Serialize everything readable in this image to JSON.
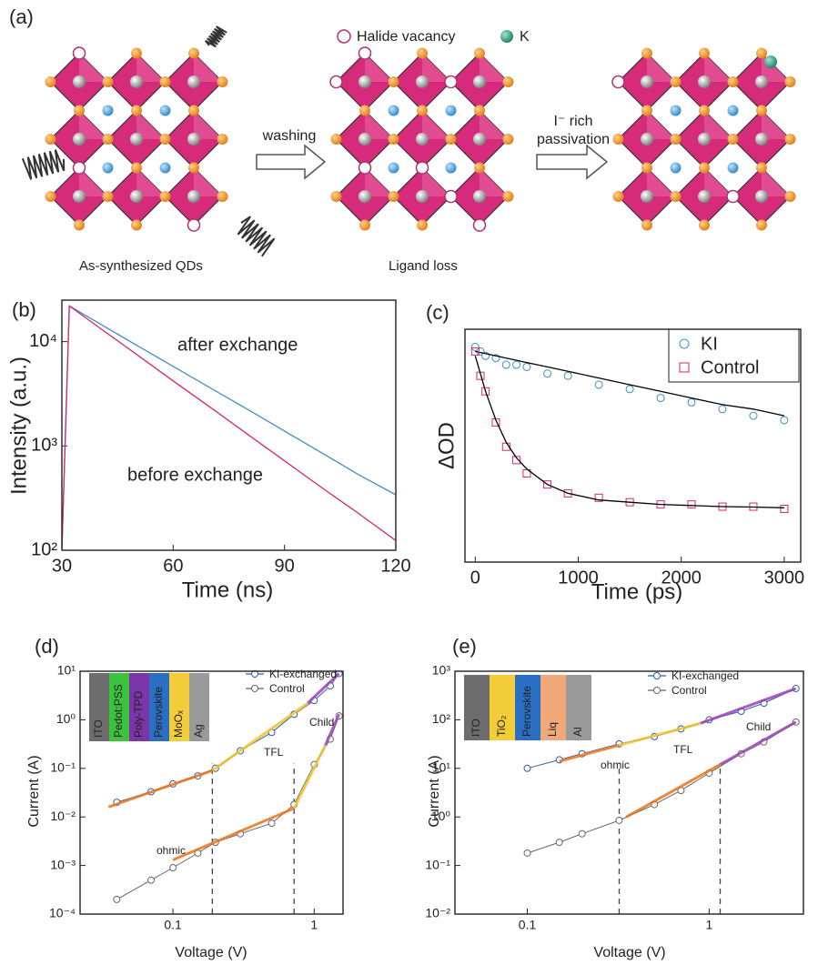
{
  "diagram": {
    "label": "(a)",
    "legend": [
      "Halide vacancy",
      "K"
    ],
    "steps": [
      "washing",
      "I⁻ rich",
      "passivation"
    ],
    "captions": [
      "As-synthesized QDs",
      "Ligand loss"
    ]
  },
  "chart_data": [
    {
      "type": "line",
      "panel": "(b)",
      "x_label": "Time (ns)",
      "y_label": "Intensity (a.u.)",
      "yscale": "log",
      "x": [
        30,
        32,
        40,
        50,
        60,
        70,
        80,
        90,
        100,
        110,
        120
      ],
      "series": [
        {
          "name": "after exchange",
          "color": "#3c8fc7",
          "values": [
            100,
            22000,
            15000,
            9300,
            5800,
            3600,
            2250,
            1390,
            860,
            530,
            340
          ]
        },
        {
          "name": "before exchange",
          "color": "#d6286b",
          "values": [
            100,
            22000,
            13700,
            7600,
            4200,
            2350,
            1300,
            720,
            400,
            225,
            124
          ]
        }
      ],
      "xlim": [
        30,
        120
      ],
      "xticks": [
        30,
        60,
        90,
        120
      ],
      "ylim": [
        100,
        25000
      ],
      "yticks": [
        {
          "value": 100,
          "label": "10²"
        },
        {
          "value": 1000,
          "label": "10³"
        },
        {
          "value": 10000,
          "label": "10⁴"
        }
      ]
    },
    {
      "type": "scatter",
      "panel": "(c)",
      "x_label": "Time (ps)",
      "y_label": "ΔOD",
      "fit_color": "#000000",
      "legend": "upper right",
      "x": [
        0,
        50,
        100,
        200,
        300,
        400,
        500,
        700,
        900,
        1200,
        1500,
        1800,
        2100,
        2400,
        2700,
        3000
      ],
      "series": [
        {
          "name": "KI",
          "color": "#3c8fc7",
          "marker": "circle",
          "values": [
            0.97,
            0.95,
            0.93,
            0.92,
            0.89,
            0.89,
            0.88,
            0.85,
            0.84,
            0.8,
            0.78,
            0.74,
            0.72,
            0.69,
            0.66,
            0.64
          ],
          "fit": [
            0.95,
            0.945,
            0.94,
            0.93,
            0.92,
            0.91,
            0.9,
            0.88,
            0.86,
            0.83,
            0.8,
            0.77,
            0.74,
            0.71,
            0.69,
            0.66
          ]
        },
        {
          "name": "Control",
          "color": "#d6286b",
          "marker": "square",
          "values": [
            0.95,
            0.84,
            0.77,
            0.63,
            0.52,
            0.46,
            0.4,
            0.35,
            0.31,
            0.29,
            0.27,
            0.26,
            0.26,
            0.25,
            0.25,
            0.24
          ],
          "fit": [
            0.93,
            0.85,
            0.77,
            0.64,
            0.54,
            0.47,
            0.42,
            0.35,
            0.31,
            0.28,
            0.27,
            0.26,
            0.255,
            0.25,
            0.248,
            0.245
          ]
        }
      ],
      "xlim": [
        -100,
        3160
      ],
      "xticks": [
        0,
        1000,
        2000,
        3000
      ],
      "ylim": [
        0,
        1.05
      ]
    },
    {
      "type": "line",
      "panel": "(d)",
      "x_label": "Voltage (V)",
      "y_label": "Current (A)",
      "xscale": "log",
      "yscale": "log",
      "x": [
        0.04,
        0.07,
        0.1,
        0.15,
        0.2,
        0.3,
        0.5,
        0.72,
        1,
        1.3,
        1.5
      ],
      "series": [
        {
          "name": "KI-exchanged",
          "color": "#2f5fa8",
          "marker": "circle",
          "values": [
            0.02,
            0.033,
            0.048,
            0.07,
            0.1,
            0.23,
            0.55,
            1.3,
            2.5,
            5,
            9
          ]
        },
        {
          "name": "Control",
          "color": "#666666",
          "marker": "circle",
          "values": [
            0.0002,
            0.0005,
            0.0009,
            0.0018,
            0.003,
            0.0045,
            0.0074,
            0.018,
            0.12,
            0.4,
            1.2
          ]
        }
      ],
      "fits": [
        {
          "color": "#e8731f",
          "x": [
            0.035,
            0.19
          ],
          "values": [
            0.016,
            0.09
          ]
        },
        {
          "color": "#f2c12e",
          "x": [
            0.19,
            0.9
          ],
          "values": [
            0.09,
            2.2
          ]
        },
        {
          "color": "#9b3fb5",
          "x": [
            0.9,
            1.5
          ],
          "values": [
            2.2,
            9
          ]
        },
        {
          "color": "#e8731f",
          "x": [
            0.1,
            0.72
          ],
          "values": [
            0.0013,
            0.015
          ]
        },
        {
          "color": "#f2c12e",
          "x": [
            0.72,
            1.2
          ],
          "values": [
            0.015,
            0.3
          ]
        },
        {
          "color": "#9b3fb5",
          "x": [
            1.2,
            1.5
          ],
          "values": [
            0.3,
            1.3
          ]
        }
      ],
      "vlines": [
        0.19,
        0.72
      ],
      "annotations": [
        "ohmic",
        "TFL",
        "Child"
      ],
      "layers": [
        {
          "label": "ITO",
          "color": "#6d6d6d"
        },
        {
          "label": "Pedot:PSS",
          "color": "#3cc23c"
        },
        {
          "label": "Poly-TPD",
          "color": "#7a35a8"
        },
        {
          "label": "Perovskite",
          "color": "#2a6fc2"
        },
        {
          "label": "MoOₓ",
          "color": "#f3cc3a"
        },
        {
          "label": "Ag",
          "color": "#9a9a9a"
        }
      ],
      "xlim": [
        0.022,
        1.6
      ],
      "xticks": [
        0.1,
        1
      ],
      "ylim": [
        0.0001,
        10
      ],
      "yticks": [
        {
          "value": 0.0001,
          "label": "10⁻⁴"
        },
        {
          "value": 0.001,
          "label": "10⁻³"
        },
        {
          "value": 0.01,
          "label": "10⁻²"
        },
        {
          "value": 0.1,
          "label": "10⁻¹"
        },
        {
          "value": 1,
          "label": "10⁰"
        },
        {
          "value": 10,
          "label": "10¹"
        }
      ]
    },
    {
      "type": "line",
      "panel": "(e)",
      "x_label": "Voltage (V)",
      "y_label": "Current (A)",
      "xscale": "log",
      "yscale": "log",
      "x": [
        0.1,
        0.15,
        0.2,
        0.32,
        0.5,
        0.7,
        1,
        1.5,
        2,
        3
      ],
      "series": [
        {
          "name": "KI-exchanged",
          "color": "#2f5fa8",
          "marker": "circle",
          "values": [
            10,
            15,
            20,
            32,
            45,
            65,
            100,
            150,
            220,
            440
          ]
        },
        {
          "name": "Control",
          "color": "#666666",
          "marker": "circle",
          "values": [
            0.18,
            0.3,
            0.45,
            0.85,
            1.8,
            3.5,
            8,
            20,
            35,
            90
          ]
        }
      ],
      "fits": [
        {
          "color": "#e8731f",
          "x": [
            0.15,
            0.32
          ],
          "values": [
            14,
            30
          ]
        },
        {
          "color": "#f2c12e",
          "x": [
            0.32,
            0.9
          ],
          "values": [
            30,
            85
          ]
        },
        {
          "color": "#9b3fb5",
          "x": [
            0.9,
            3
          ],
          "values": [
            85,
            440
          ]
        },
        {
          "color": "#e8731f",
          "x": [
            0.35,
            1.15
          ],
          "values": [
            1,
            12
          ]
        },
        {
          "color": "#9b3fb5",
          "x": [
            1.15,
            3
          ],
          "values": [
            12,
            90
          ]
        }
      ],
      "vlines": [
        0.32,
        1.15
      ],
      "annotations": [
        "ohmic",
        "TFL",
        "Child"
      ],
      "layers": [
        {
          "label": "ITO",
          "color": "#6d6d6d"
        },
        {
          "label": "TiO₂",
          "color": "#f3cc3a"
        },
        {
          "label": "Perovskite",
          "color": "#2a6fc2"
        },
        {
          "label": "Liq",
          "color": "#f2a97a"
        },
        {
          "label": "Al",
          "color": "#9a9a9a"
        }
      ],
      "xlim": [
        0.04,
        3.3
      ],
      "xticks": [
        0.1,
        1
      ],
      "ylim": [
        0.01,
        1000
      ],
      "yticks": [
        {
          "value": 0.01,
          "label": "10⁻²"
        },
        {
          "value": 0.1,
          "label": "10⁻¹"
        },
        {
          "value": 1,
          "label": "10⁰"
        },
        {
          "value": 10,
          "label": "10¹"
        },
        {
          "value": 100,
          "label": "10²"
        },
        {
          "value": 1000,
          "label": "10³"
        }
      ]
    }
  ]
}
